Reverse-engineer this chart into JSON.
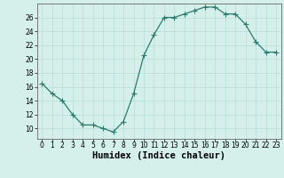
{
  "x": [
    0,
    1,
    2,
    3,
    4,
    5,
    6,
    7,
    8,
    9,
    10,
    11,
    12,
    13,
    14,
    15,
    16,
    17,
    18,
    19,
    20,
    21,
    22,
    23
  ],
  "y": [
    16.5,
    15,
    14,
    12,
    10.5,
    10.5,
    10,
    9.5,
    11,
    15,
    20.5,
    23.5,
    26,
    26,
    26.5,
    27,
    27.5,
    27.5,
    26.5,
    26.5,
    25,
    22.5,
    21,
    21
  ],
  "line_color": "#2a7a6e",
  "marker_color": "#2a7a6e",
  "bg_color": "#d5f0eb",
  "grid_color": "#b8ddd8",
  "xlabel": "Humidex (Indice chaleur)",
  "xlim": [
    -0.5,
    23.5
  ],
  "ylim": [
    8.5,
    28
  ],
  "yticks": [
    10,
    12,
    14,
    16,
    18,
    20,
    22,
    24,
    26
  ],
  "xticks": [
    0,
    1,
    2,
    3,
    4,
    5,
    6,
    7,
    8,
    9,
    10,
    11,
    12,
    13,
    14,
    15,
    16,
    17,
    18,
    19,
    20,
    21,
    22,
    23
  ],
  "tick_fontsize": 5.5,
  "xlabel_fontsize": 7.5,
  "marker_size": 2.0,
  "line_width": 0.9
}
